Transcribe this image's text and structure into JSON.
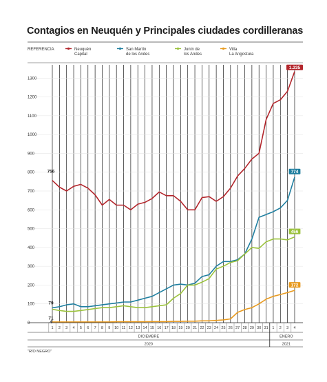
{
  "chart_data": {
    "type": "line",
    "title": "Contagios en Neuquén y Principales ciudades cordilleranas",
    "legend_title": "REFERENCIA",
    "legend_position": "top",
    "source": "\"RÍO NEGRO\"",
    "ylim": [
      0,
      1400
    ],
    "yticks": [
      0,
      100,
      200,
      300,
      400,
      500,
      600,
      700,
      800,
      900,
      1000,
      1100,
      1200,
      1300
    ],
    "categories": [
      "1",
      "2",
      "3",
      "4",
      "5",
      "6",
      "7",
      "8",
      "9",
      "10",
      "11",
      "12",
      "13",
      "14",
      "15",
      "16",
      "17",
      "18",
      "19",
      "20",
      "21",
      "22",
      "23",
      "24",
      "25",
      "26",
      "27",
      "28",
      "29",
      "30",
      "31",
      "1",
      "2",
      "3",
      "4"
    ],
    "month_groups": [
      {
        "label": "DICIEMBRE",
        "year": "2020",
        "count": 31
      },
      {
        "label": "ENERO",
        "year": "2021",
        "count": 4
      }
    ],
    "grid": true,
    "series": [
      {
        "name_line1": "Neuquén",
        "name_line2": "Capital",
        "color": "#b3262c",
        "values": [
          756,
          720,
          700,
          725,
          735,
          715,
          680,
          625,
          655,
          625,
          625,
          600,
          630,
          640,
          660,
          695,
          675,
          675,
          645,
          600,
          600,
          665,
          670,
          645,
          670,
          715,
          780,
          820,
          870,
          900,
          1080,
          1165,
          1185,
          1230,
          1335
        ],
        "labels": {
          "0": "756",
          "34": "1.335"
        }
      },
      {
        "name_line1": "San Martín",
        "name_line2": "de los Andes",
        "color": "#1f7fa0",
        "values": [
          79,
          85,
          95,
          100,
          85,
          85,
          90,
          95,
          100,
          105,
          110,
          110,
          120,
          130,
          140,
          160,
          180,
          200,
          205,
          200,
          210,
          245,
          255,
          300,
          325,
          325,
          335,
          365,
          445,
          560,
          575,
          590,
          610,
          650,
          774
        ],
        "labels": {
          "0": "79",
          "34": "774"
        }
      },
      {
        "name_line1": "Junín de",
        "name_line2": "los Andes",
        "color": "#9bc23c",
        "values": [
          71,
          65,
          60,
          60,
          65,
          70,
          75,
          80,
          80,
          85,
          90,
          85,
          80,
          80,
          85,
          90,
          95,
          130,
          155,
          200,
          200,
          215,
          235,
          285,
          300,
          320,
          330,
          365,
          400,
          395,
          430,
          445,
          445,
          440,
          456
        ],
        "labels": {
          "0": "71",
          "34": "456"
        }
      },
      {
        "name_line1": "Villa",
        "name_line2": "La Angostura",
        "color": "#e89a1e",
        "values": [
          4,
          4,
          4,
          4,
          4,
          4,
          4,
          4,
          4,
          5,
          5,
          5,
          5,
          5,
          6,
          6,
          6,
          7,
          7,
          8,
          8,
          10,
          10,
          12,
          15,
          20,
          55,
          70,
          80,
          100,
          125,
          140,
          150,
          160,
          172
        ],
        "labels": {
          "0": "4",
          "34": "172"
        }
      }
    ]
  }
}
